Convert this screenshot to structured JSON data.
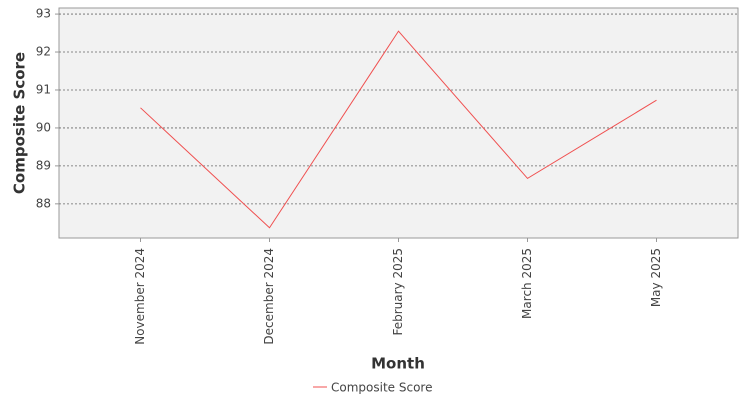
{
  "chart_data": {
    "type": "line",
    "x_label": "Month",
    "y_label": "Composite Score",
    "categories": [
      "November 2024",
      "December 2024",
      "February 2025",
      "March 2025",
      "May 2025"
    ],
    "series": [
      {
        "name": "Composite Score",
        "color": "#f05050",
        "values": [
          90.53,
          87.37,
          92.55,
          88.67,
          90.73
        ]
      }
    ],
    "ylim": [
      87.1,
      93.16
    ],
    "yticks": [
      88,
      89,
      90,
      91,
      92,
      93
    ],
    "grid": true
  }
}
